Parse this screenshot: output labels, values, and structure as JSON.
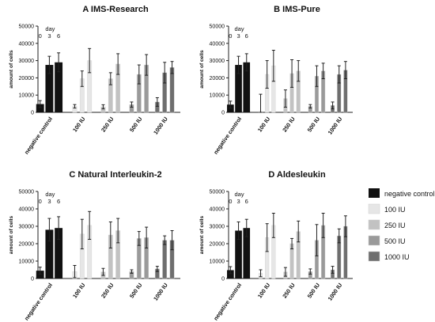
{
  "chart_data": [
    {
      "type": "bar",
      "panel_label": "A",
      "title": "IMS-Research",
      "ylabel": "amount of cells",
      "ylim": [
        0,
        50000
      ],
      "yticks": [
        0,
        10000,
        20000,
        30000,
        40000,
        50000
      ],
      "categories": [
        "negative control",
        "100 IU",
        "250 IU",
        "500 IU",
        "1000 IU"
      ],
      "day_annotation": {
        "label": "day",
        "days": [
          "0",
          "3",
          "6"
        ]
      },
      "series": [
        {
          "values": [
            4800,
            3500,
            3200,
            4500,
            6000
          ],
          "errors": [
            2000,
            1000,
            1200,
            1500,
            2500
          ]
        },
        {
          "values": [
            27500,
            19500,
            19500,
            22000,
            23000
          ],
          "errors": [
            5000,
            4500,
            3500,
            5500,
            6000
          ]
        },
        {
          "values": [
            29000,
            30000,
            28000,
            27500,
            26000
          ],
          "errors": [
            5500,
            7000,
            6000,
            6000,
            3500
          ]
        }
      ]
    },
    {
      "type": "bar",
      "panel_label": "B",
      "title": "IMS-Pure",
      "ylabel": "amount of cells",
      "ylim": [
        0,
        50000
      ],
      "yticks": [
        0,
        10000,
        20000,
        30000,
        40000,
        50000
      ],
      "categories": [
        "negative control",
        "100 IU",
        "250 IU",
        "500 IU",
        "1000 IU"
      ],
      "day_annotation": {
        "label": "day",
        "days": [
          "0",
          "3",
          "6"
        ]
      },
      "series": [
        {
          "values": [
            4500,
            500,
            8000,
            3500,
            4000
          ],
          "errors": [
            2000,
            10000,
            5000,
            1000,
            2000
          ]
        },
        {
          "values": [
            27500,
            22000,
            22500,
            21000,
            22000
          ],
          "errors": [
            5000,
            8000,
            8000,
            6000,
            5000
          ]
        },
        {
          "values": [
            29000,
            27000,
            24000,
            24000,
            24500
          ],
          "errors": [
            5000,
            9000,
            6000,
            4500,
            5000
          ]
        }
      ]
    },
    {
      "type": "bar",
      "panel_label": "C",
      "title": "Natural Interleukin-2",
      "ylabel": "amount of cells",
      "ylim": [
        0,
        50000
      ],
      "yticks": [
        0,
        10000,
        20000,
        30000,
        40000,
        50000
      ],
      "categories": [
        "negative control",
        "100 IU",
        "250 IU",
        "500 IU",
        "1000 IU"
      ],
      "day_annotation": {
        "label": "day",
        "days": [
          "0",
          "3",
          "6"
        ]
      },
      "series": [
        {
          "values": [
            4500,
            4000,
            3800,
            4000,
            5500
          ],
          "errors": [
            2000,
            3500,
            2000,
            1000,
            1500
          ]
        },
        {
          "values": [
            28000,
            25500,
            25000,
            23000,
            22000
          ],
          "errors": [
            6500,
            8500,
            7500,
            4000,
            2500
          ]
        },
        {
          "values": [
            29000,
            30500,
            27500,
            23500,
            22000
          ],
          "errors": [
            6500,
            8000,
            7000,
            6000,
            5500
          ]
        }
      ]
    },
    {
      "type": "bar",
      "panel_label": "D",
      "title": "Aldesleukin",
      "ylabel": "amount of cells",
      "ylim": [
        0,
        50000
      ],
      "yticks": [
        0,
        10000,
        20000,
        30000,
        40000,
        50000
      ],
      "categories": [
        "negative control",
        "100 IU",
        "250 IU",
        "500 IU",
        "1000 IU"
      ],
      "day_annotation": {
        "label": "day",
        "days": [
          "0",
          "3",
          "6"
        ]
      },
      "series": [
        {
          "values": [
            4800,
            3000,
            3800,
            4000,
            5000
          ],
          "errors": [
            2000,
            2000,
            2500,
            1500,
            2000
          ]
        },
        {
          "values": [
            27500,
            23500,
            20000,
            22000,
            24500
          ],
          "errors": [
            5000,
            8000,
            3000,
            9000,
            4000
          ]
        },
        {
          "values": [
            29000,
            30500,
            27000,
            30500,
            30000
          ],
          "errors": [
            5000,
            7000,
            6000,
            7000,
            6000
          ]
        }
      ]
    }
  ],
  "legend": {
    "placement": "right",
    "entries": [
      {
        "label": "negative control",
        "color": "#111111"
      },
      {
        "label": "100 IU",
        "color": "#e6e6e6"
      },
      {
        "label": "250 IU",
        "color": "#c2c2c2"
      },
      {
        "label": "500 IU",
        "color": "#9a9a9a"
      },
      {
        "label": "1000 IU",
        "color": "#6e6e6e"
      }
    ]
  },
  "colors": {
    "negative control": "#111111",
    "100 IU": "#e6e6e6",
    "250 IU": "#c2c2c2",
    "500 IU": "#9a9a9a",
    "1000 IU": "#6e6e6e",
    "error_bar": "#222222",
    "axis": "#222222"
  }
}
